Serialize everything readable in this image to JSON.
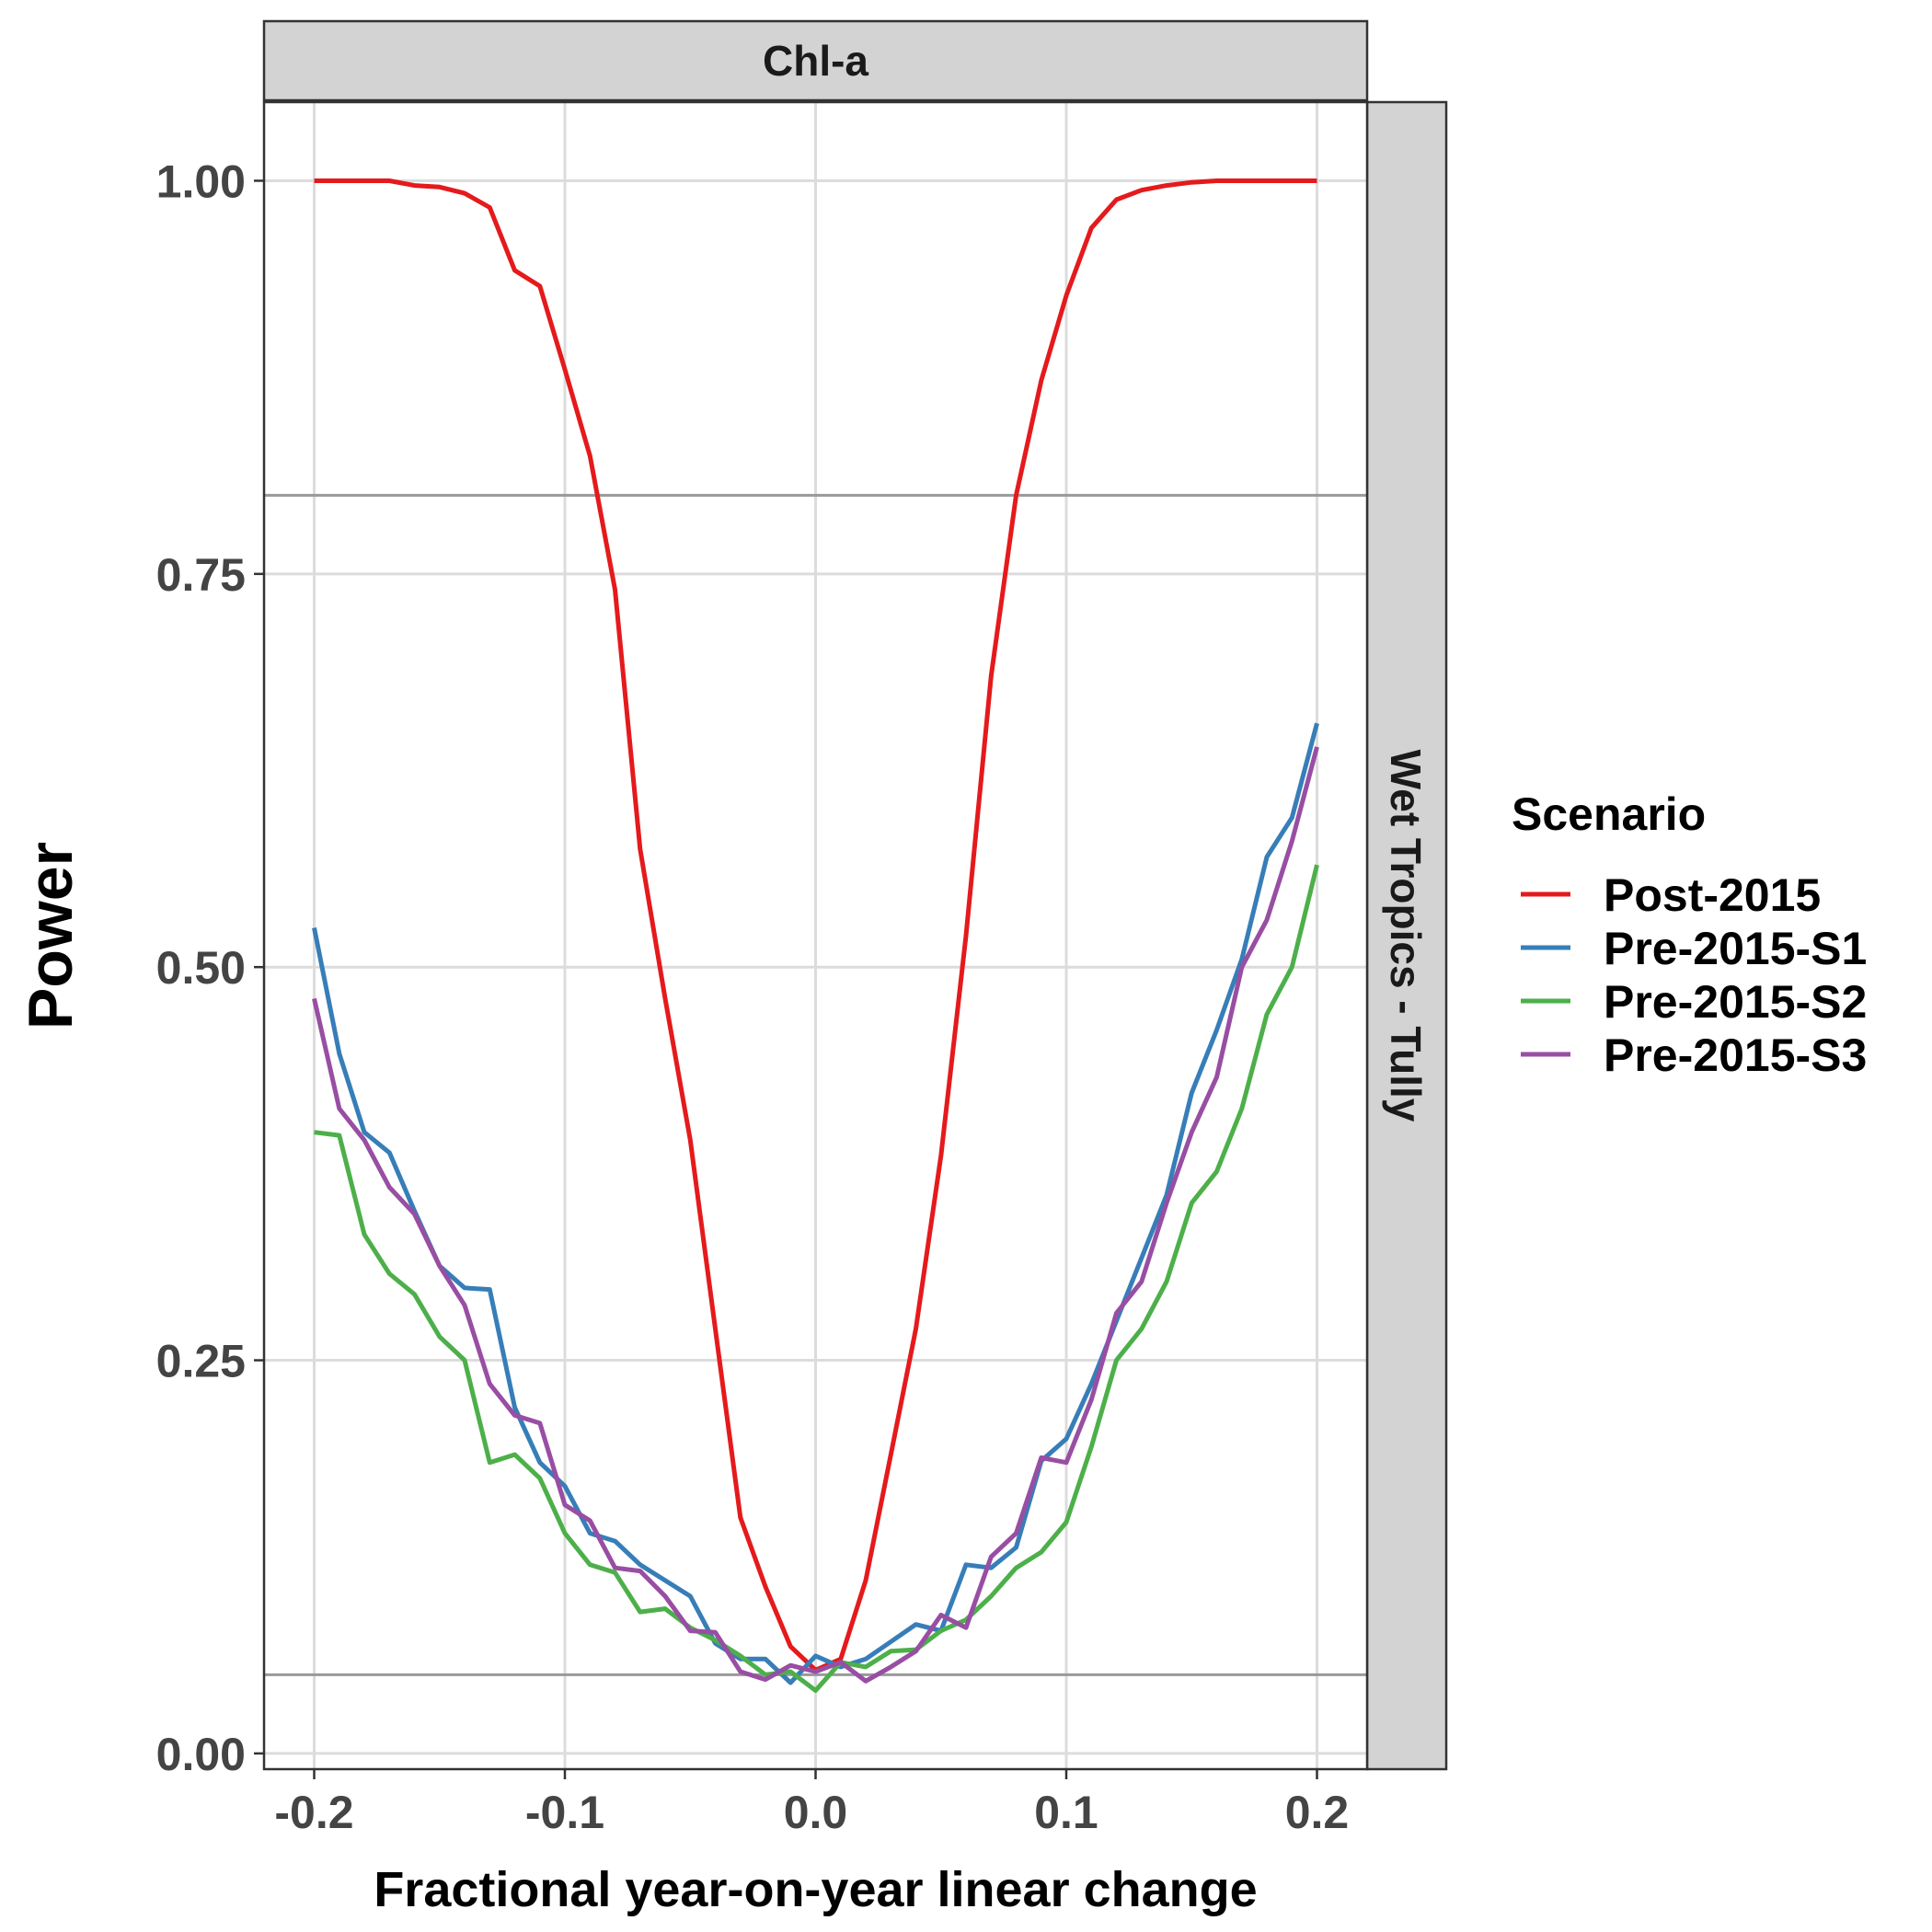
{
  "chart_data": {
    "type": "line",
    "facet_top": "Chl-a",
    "facet_right": "Wet Tropics - Tully",
    "xlabel": "Fractional year-on-year linear change",
    "ylabel": "Power",
    "xlim": [
      -0.22,
      0.22
    ],
    "ylim": [
      -0.01,
      1.05
    ],
    "xticks": [
      -0.2,
      -0.1,
      0.0,
      0.1,
      0.2
    ],
    "xtick_labels": [
      "-0.2",
      "-0.1",
      "0.0",
      "0.1",
      "0.2"
    ],
    "yticks": [
      0.0,
      0.25,
      0.5,
      0.75,
      1.0
    ],
    "ytick_labels": [
      "0.00",
      "0.25",
      "0.50",
      "0.75",
      "1.00"
    ],
    "reference_lines": [
      0.8,
      0.05
    ],
    "grid": true,
    "legend": {
      "title": "Scenario",
      "placement": "right"
    },
    "x": [
      -0.2,
      -0.19,
      -0.18,
      -0.17,
      -0.16,
      -0.15,
      -0.14,
      -0.13,
      -0.12,
      -0.11,
      -0.1,
      -0.09,
      -0.08,
      -0.07,
      -0.06,
      -0.05,
      -0.04,
      -0.03,
      -0.02,
      -0.01,
      0.0,
      0.01,
      0.02,
      0.03,
      0.04,
      0.05,
      0.06,
      0.07,
      0.08,
      0.09,
      0.1,
      0.11,
      0.12,
      0.13,
      0.14,
      0.15,
      0.16,
      0.17,
      0.18,
      0.19,
      0.2
    ],
    "series": [
      {
        "name": "Post-2015",
        "color": "#E41A1C",
        "values": [
          1.0,
          1.0,
          1.0,
          1.0,
          0.997,
          0.996,
          0.992,
          0.983,
          0.943,
          0.933,
          0.88,
          0.825,
          0.74,
          0.575,
          0.48,
          0.39,
          0.27,
          0.15,
          0.106,
          0.068,
          0.053,
          0.06,
          0.11,
          0.19,
          0.27,
          0.38,
          0.52,
          0.685,
          0.8,
          0.873,
          0.927,
          0.97,
          0.988,
          0.994,
          0.997,
          0.999,
          1.0,
          1.0,
          1.0,
          1.0,
          1.0
        ]
      },
      {
        "name": "Pre-2015-S1",
        "color": "#377EB8",
        "values": [
          0.525,
          0.445,
          0.395,
          0.382,
          0.345,
          0.31,
          0.296,
          0.295,
          0.22,
          0.185,
          0.17,
          0.14,
          0.135,
          0.12,
          0.11,
          0.1,
          0.07,
          0.06,
          0.06,
          0.045,
          0.062,
          0.055,
          0.06,
          0.071,
          0.082,
          0.078,
          0.12,
          0.118,
          0.131,
          0.186,
          0.2,
          0.235,
          0.275,
          0.315,
          0.355,
          0.42,
          0.46,
          0.505,
          0.57,
          0.595,
          0.655
        ]
      },
      {
        "name": "Pre-2015-S2",
        "color": "#4DAF4A",
        "values": [
          0.395,
          0.393,
          0.33,
          0.305,
          0.292,
          0.265,
          0.25,
          0.185,
          0.19,
          0.175,
          0.14,
          0.12,
          0.115,
          0.09,
          0.092,
          0.08,
          0.072,
          0.062,
          0.05,
          0.052,
          0.04,
          0.058,
          0.055,
          0.065,
          0.066,
          0.078,
          0.085,
          0.1,
          0.118,
          0.128,
          0.147,
          0.195,
          0.25,
          0.27,
          0.3,
          0.35,
          0.37,
          0.41,
          0.47,
          0.5,
          0.565
        ]
      },
      {
        "name": "Pre-2015-S3",
        "color": "#984EA3",
        "values": [
          0.48,
          0.41,
          0.39,
          0.36,
          0.343,
          0.31,
          0.285,
          0.235,
          0.215,
          0.21,
          0.158,
          0.148,
          0.118,
          0.116,
          0.1,
          0.078,
          0.077,
          0.052,
          0.047,
          0.056,
          0.052,
          0.058,
          0.046,
          0.055,
          0.065,
          0.088,
          0.08,
          0.125,
          0.14,
          0.188,
          0.185,
          0.225,
          0.28,
          0.3,
          0.35,
          0.395,
          0.43,
          0.5,
          0.53,
          0.58,
          0.64
        ]
      }
    ]
  }
}
